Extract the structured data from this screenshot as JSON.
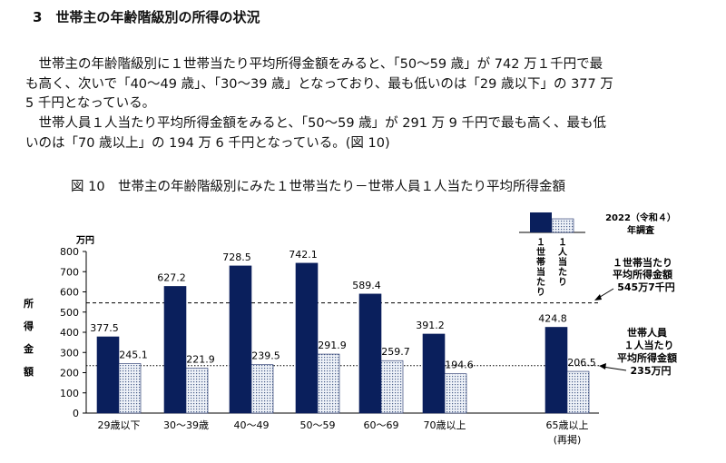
{
  "section_title": "3　世帯主の年齢階級別の所得の状況",
  "paragraphs": [
    "　世帯主の年齢階級別に１世帯当たり平均所得金額をみると、「50～59 歳」が 742 万１千円で最",
    "も高く、次いで「40～49 歳」、「30～39 歳」となっており、最も低いのは「29 歳以下」の 377 万",
    "5 千円となっている。",
    "　世帯人員１人当たり平均所得金額をみると、「50～59 歳」が 291 万 9 千円で最も高く、最も低",
    "いのは「70 歳以上」の 194 万 6 千円となっている。(図 10)"
  ],
  "chart_data": {
    "type": "bar",
    "title": "図 10　世帯主の年齢階級別にみた１世帯当たり－世帯人員１人当たり平均所得金額",
    "unit_label": "万円",
    "ylabel": [
      "所",
      "得",
      "金",
      "額"
    ],
    "ylim": [
      0,
      800
    ],
    "yticks": [
      0,
      100,
      200,
      300,
      400,
      500,
      600,
      700,
      800
    ],
    "categories": [
      "29歳以下",
      "30～39歳",
      "40～49",
      "50～59",
      "60～69",
      "70歳以上",
      "65歳以上"
    ],
    "category_sublabels": {
      "6": "(再掲)"
    },
    "series": [
      {
        "name": "１世帯当たり",
        "color": "#0a1f5c",
        "values": [
          377.5,
          627.2,
          728.5,
          742.1,
          589.4,
          391.2,
          424.8
        ],
        "labels": [
          "377.5",
          "627.2",
          "728.5",
          "742.1",
          "589.4",
          "391.2",
          "424.8"
        ]
      },
      {
        "name": "１人当たり",
        "color": "#c9d6ea",
        "values": [
          245.1,
          221.9,
          239.5,
          291.9,
          259.7,
          194.6,
          206.5
        ],
        "labels": [
          "245.1",
          "221.9",
          "239.5",
          "291.9",
          "259.7",
          "194.6",
          "206.5"
        ]
      }
    ],
    "legend": {
      "year": "2022（令和４）",
      "survey": "年調査",
      "series_labels": [
        "１世帯当たり",
        "１人当たり"
      ]
    },
    "reference_lines": [
      {
        "value": 545.7,
        "style": "dashed",
        "annotation": [
          "１世帯当たり",
          "平均所得金額",
          "545万7千円"
        ]
      },
      {
        "value": 235,
        "style": "dotted",
        "annotation": [
          "世帯人員",
          "１人当たり",
          "平均所得金額",
          "235万円"
        ]
      }
    ]
  }
}
